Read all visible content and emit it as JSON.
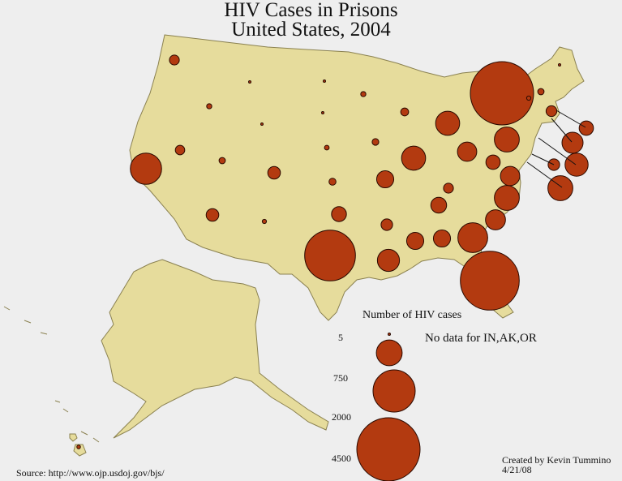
{
  "title": "HIV Cases in Prisons",
  "subtitle": "United States, 2004",
  "legend": {
    "title": "Number of HIV cases",
    "note": "No data for IN,AK,OR",
    "sizes": [
      5,
      750,
      2000,
      4500
    ],
    "size_labels": [
      "5",
      "750",
      "2000",
      "4500"
    ]
  },
  "source": "Source: http://www.ojp.usdoj.gov/bjs/",
  "credit": "Created by Kevin Tummino",
  "date": "4/21/08",
  "colors": {
    "land": "#e6dc9c",
    "border": "#8a8150",
    "bubble": "#b33a10",
    "bubble_edge": "#2a0a00",
    "background": "#eeeeee"
  },
  "chart_data": {
    "type": "proportional-symbol-map",
    "title": "HIV Cases in Prisons",
    "subtitle": "United States, 2004",
    "unit": "Number of HIV cases",
    "states": [
      {
        "state": "NY",
        "value": 4500
      },
      {
        "state": "FL",
        "value": 3900
      },
      {
        "state": "TX",
        "value": 2900
      },
      {
        "state": "CA",
        "value": 1100
      },
      {
        "state": "GA",
        "value": 1000
      },
      {
        "state": "NC",
        "value": 700
      },
      {
        "state": "PA",
        "value": 700
      },
      {
        "state": "MD",
        "value": 700
      },
      {
        "state": "MI",
        "value": 650
      },
      {
        "state": "IL",
        "value": 650
      },
      {
        "state": "LA",
        "value": 550
      },
      {
        "state": "NJ",
        "value": 600
      },
      {
        "state": "CT",
        "value": 500
      },
      {
        "state": "SC",
        "value": 450
      },
      {
        "state": "OH",
        "value": 420
      },
      {
        "state": "VA",
        "value": 420
      },
      {
        "state": "MS",
        "value": 330
      },
      {
        "state": "AL",
        "value": 330
      },
      {
        "state": "MO",
        "value": 330
      },
      {
        "state": "TN",
        "value": 280
      },
      {
        "state": "OK",
        "value": 250
      },
      {
        "state": "MA",
        "value": 230
      },
      {
        "state": "WV",
        "value": 230
      },
      {
        "state": "AZ",
        "value": 180
      },
      {
        "state": "CO",
        "value": 180
      },
      {
        "state": "AR",
        "value": 150
      },
      {
        "state": "DE",
        "value": 150
      },
      {
        "state": "RI",
        "value": 130
      },
      {
        "state": "KY",
        "value": 110
      },
      {
        "state": "WA",
        "value": 110
      },
      {
        "state": "NV",
        "value": 100
      },
      {
        "state": "WI",
        "value": 70
      },
      {
        "state": "IA",
        "value": 50
      },
      {
        "state": "KS",
        "value": 55
      },
      {
        "state": "NH",
        "value": 45
      },
      {
        "state": "UT",
        "value": 45
      },
      {
        "state": "ID",
        "value": 30
      },
      {
        "state": "NE",
        "value": 25
      },
      {
        "state": "MN",
        "value": 30
      },
      {
        "state": "NM",
        "value": 20
      },
      {
        "state": "VT",
        "value": 20
      },
      {
        "state": "HI",
        "value": 15
      },
      {
        "state": "WY",
        "value": 5
      },
      {
        "state": "MT",
        "value": 5
      },
      {
        "state": "ND",
        "value": 5
      },
      {
        "state": "SD",
        "value": 5
      },
      {
        "state": "ME",
        "value": 5
      }
    ]
  }
}
